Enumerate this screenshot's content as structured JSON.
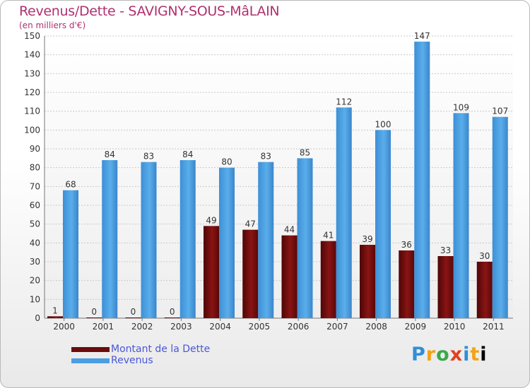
{
  "title": "Revenus/Dette - SAVIGNY-SOUS-MâLAIN",
  "subtitle": "(en milliers d'€)",
  "logo": "Proxiti",
  "colors": {
    "dette": "#7a0c0c",
    "revenus": "#4a9ee2",
    "title": "#b03070",
    "legend_text": "#4a57d6"
  },
  "chart_data": {
    "type": "bar",
    "categories": [
      "2000",
      "2001",
      "2002",
      "2003",
      "2004",
      "2005",
      "2006",
      "2007",
      "2008",
      "2009",
      "2010",
      "2011"
    ],
    "series": [
      {
        "name": "Montant de la Dette",
        "values": [
          1,
          0,
          0,
          0,
          49,
          47,
          44,
          41,
          39,
          36,
          33,
          30
        ]
      },
      {
        "name": "Revenus",
        "values": [
          68,
          84,
          83,
          84,
          80,
          83,
          85,
          112,
          100,
          147,
          109,
          107
        ]
      }
    ],
    "yticks": [
      "0",
      "10",
      "20",
      "30",
      "40",
      "50",
      "60",
      "70",
      "80",
      "90",
      "100",
      "110",
      "120",
      "130",
      "140",
      "150"
    ],
    "ylim": [
      0,
      150
    ],
    "grid": true,
    "legend_position": "bottom-left"
  }
}
